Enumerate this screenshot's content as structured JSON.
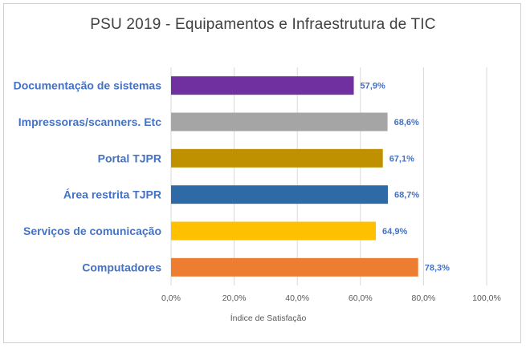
{
  "chart_data": {
    "type": "bar",
    "orientation": "horizontal",
    "title": "PSU 2019 - Equipamentos  e Infraestrutura  de TIC",
    "xlabel": "Índice de Satisfação",
    "ylabel": "",
    "xlim": [
      0,
      100
    ],
    "xticks": [
      0,
      20,
      40,
      60,
      80,
      100
    ],
    "xtick_labels": [
      "0,0%",
      "20,0%",
      "40,0%",
      "60,0%",
      "80,0%",
      "100,0%"
    ],
    "grid": "vertical",
    "legend": "none",
    "label_color": "#4472c4",
    "categories": [
      "Documentação de sistemas",
      "Impressoras/scanners. Etc",
      "Portal TJPR",
      "Área restrita TJPR",
      "Serviços de comunicação",
      "Computadores"
    ],
    "values": [
      57.9,
      68.6,
      67.1,
      68.7,
      64.9,
      78.3
    ],
    "value_labels": [
      "57,9%",
      "68,6%",
      "67,1%",
      "68,7%",
      "64,9%",
      "78,3%"
    ],
    "colors": [
      "#7030a0",
      "#a5a5a5",
      "#bf9000",
      "#2e6aa6",
      "#ffc000",
      "#ed7d31"
    ]
  }
}
